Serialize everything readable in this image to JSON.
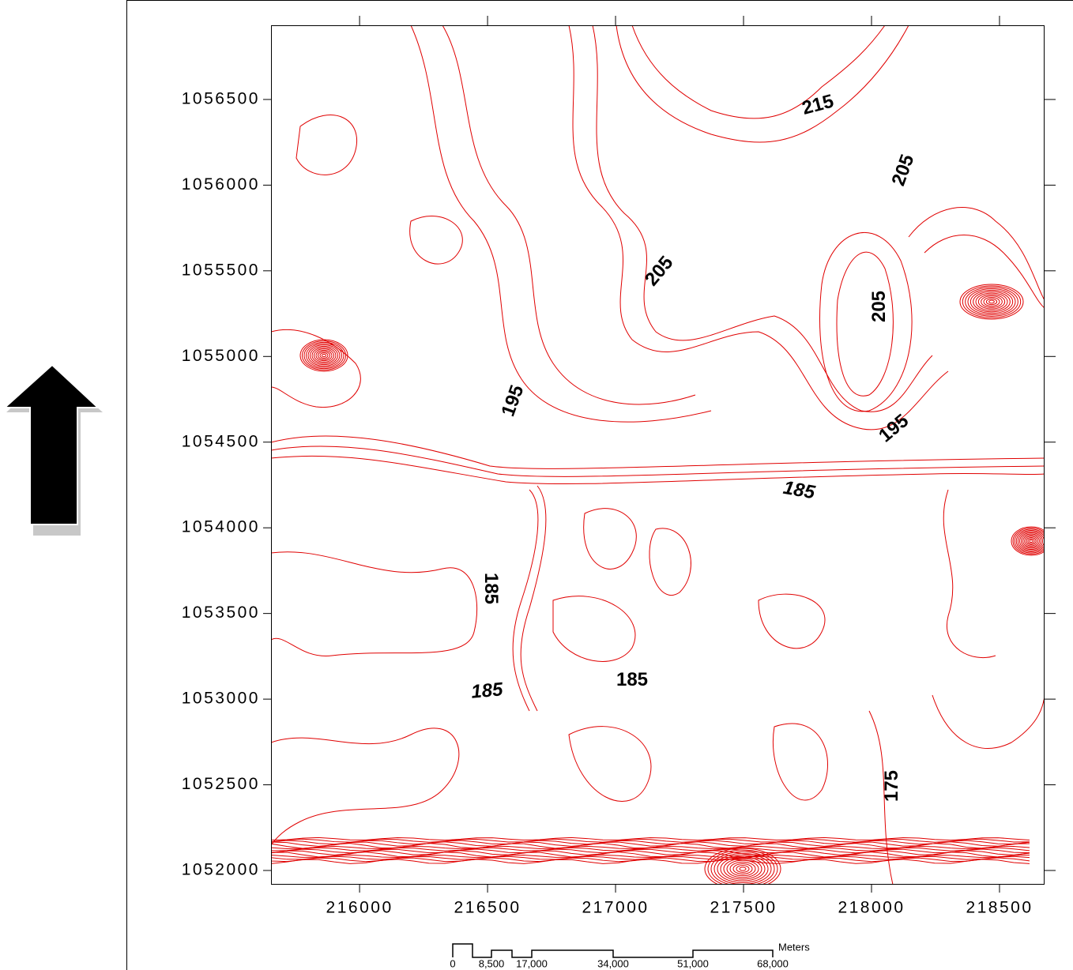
{
  "map": {
    "xlim": [
      215654,
      218676
    ],
    "ylim": [
      1051917,
      1056933
    ],
    "xticks": [
      216000,
      216500,
      217000,
      217500,
      218000,
      218500
    ],
    "yticks": [
      1052000,
      1052500,
      1053000,
      1053500,
      1054000,
      1054500,
      1055000,
      1055500,
      1056000,
      1056500
    ],
    "contour_labels": [
      "215",
      "205",
      "205",
      "205",
      "195",
      "195",
      "185",
      "185",
      "185",
      "185",
      "175"
    ]
  },
  "scale_bar": {
    "labels": [
      "0",
      "8,500",
      "17,000",
      "34,000",
      "51,000",
      "68,000"
    ],
    "unit": "Meters"
  }
}
